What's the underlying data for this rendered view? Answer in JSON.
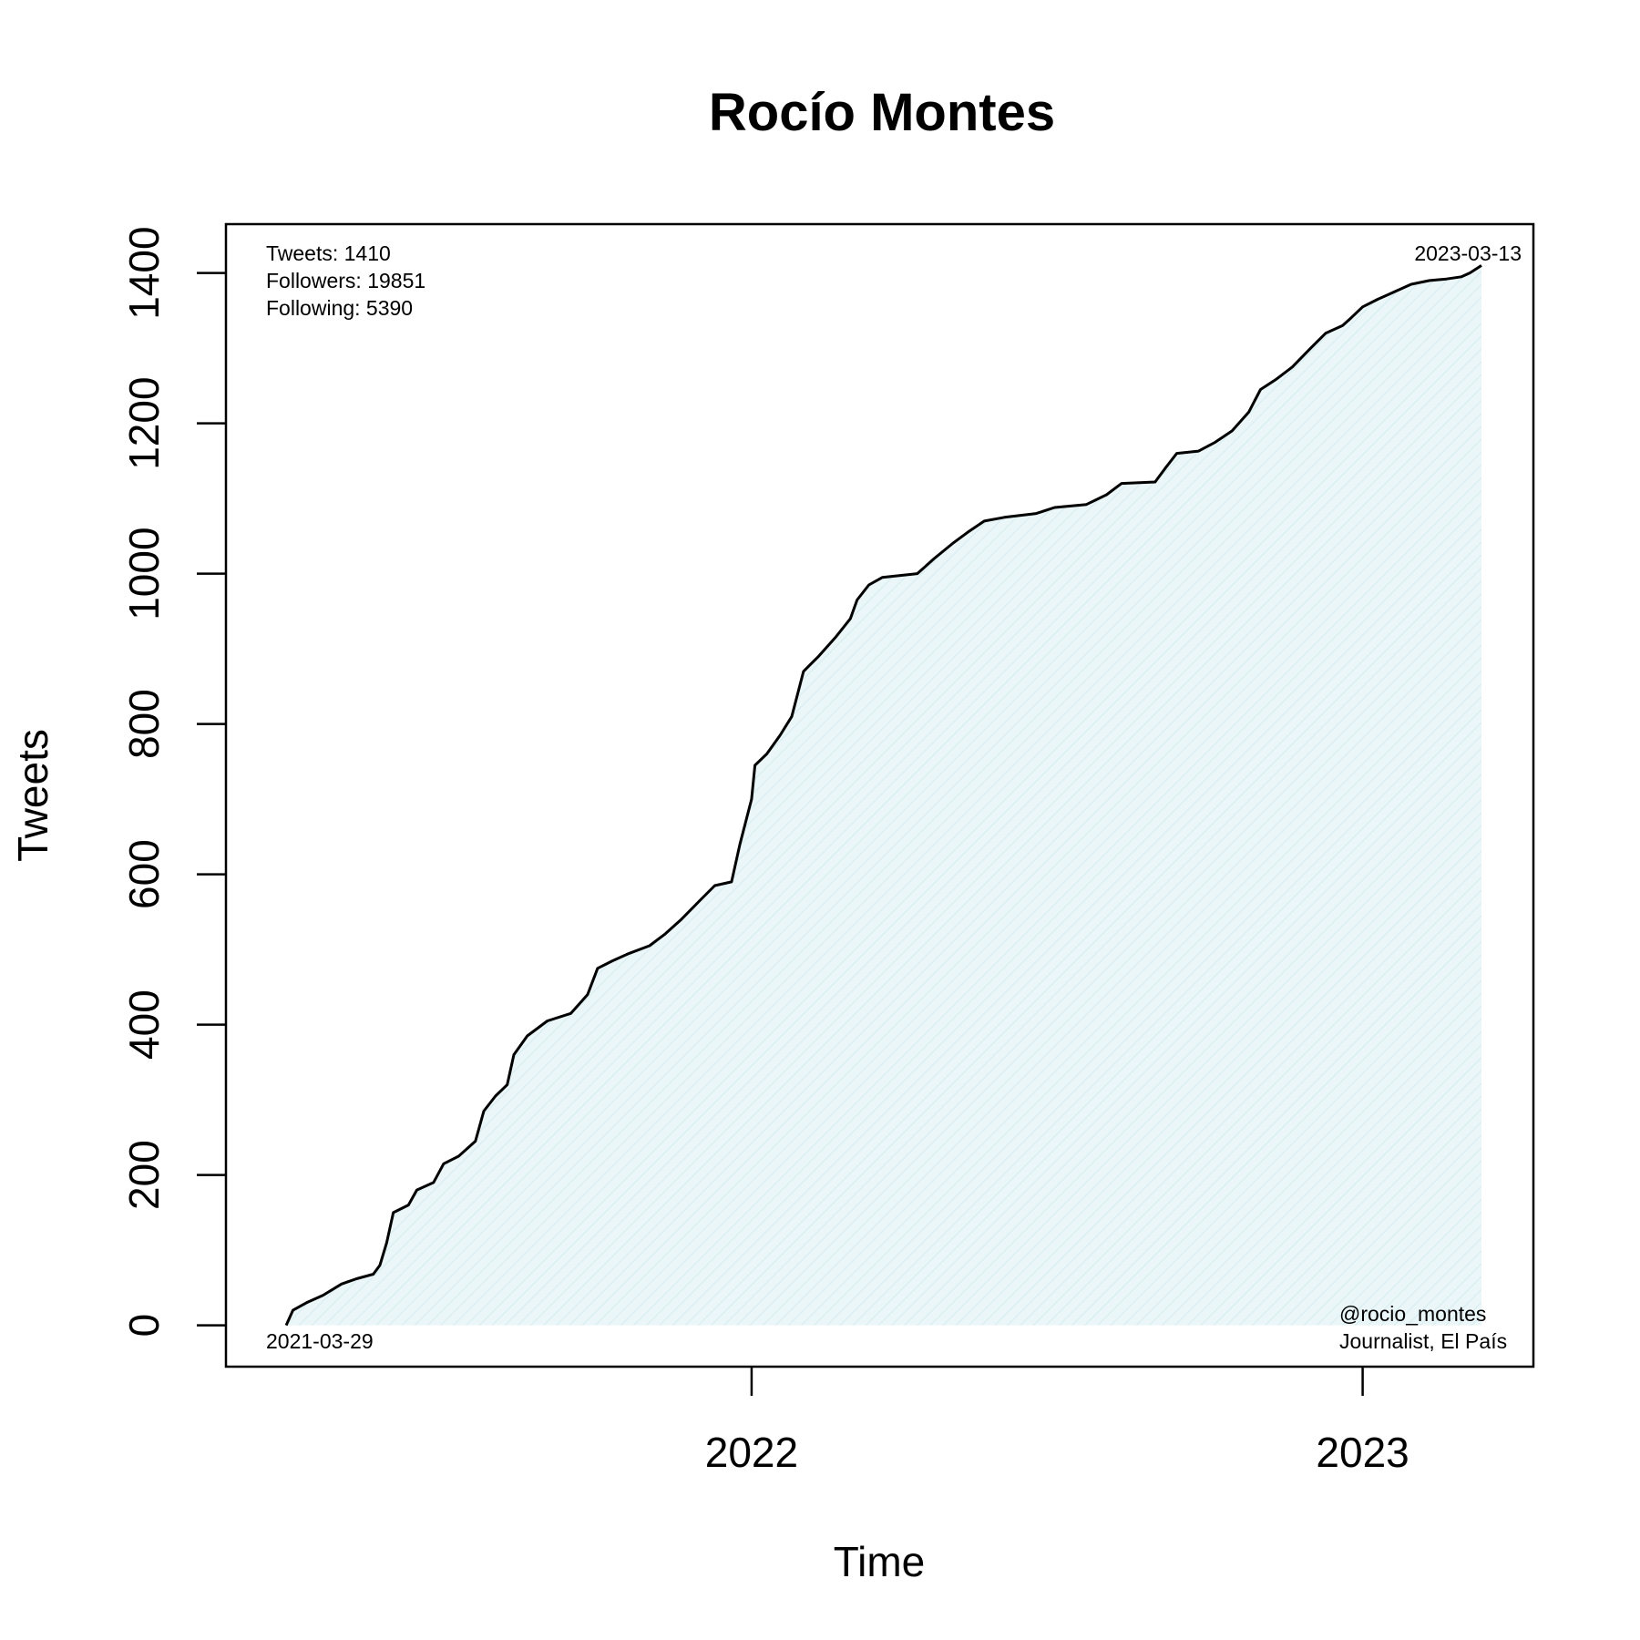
{
  "chart_data": {
    "type": "area",
    "title": "Rocío Montes",
    "xlabel": "Time",
    "ylabel": "Tweets",
    "x_ticks": [
      {
        "date": "2022-01-01",
        "label": "2022"
      },
      {
        "date": "2023-01-01",
        "label": "2023"
      }
    ],
    "y_ticks": [
      0,
      200,
      400,
      600,
      800,
      1000,
      1200,
      1400
    ],
    "xlim": [
      "2021-02-21",
      "2023-04-13"
    ],
    "ylim": [
      -55,
      1465
    ],
    "grid": false,
    "colors": {
      "line": "#000000",
      "fill": "#eaf6f8",
      "hatch": "#d6ecf1"
    },
    "annotations": {
      "tweets": "Tweets: 1410",
      "followers": "Followers: 19851",
      "following": "Following: 5390",
      "start_date": "2021-03-29",
      "end_date": "2023-03-13",
      "handle": "@rocio_montes",
      "bio": "Journalist, El País"
    },
    "series": [
      {
        "points": [
          [
            "2021-03-29",
            0
          ],
          [
            "2021-04-02",
            20
          ],
          [
            "2021-04-10",
            30
          ],
          [
            "2021-04-20",
            40
          ],
          [
            "2021-05-01",
            55
          ],
          [
            "2021-05-10",
            62
          ],
          [
            "2021-05-20",
            68
          ],
          [
            "2021-05-24",
            80
          ],
          [
            "2021-05-28",
            110
          ],
          [
            "2021-06-01",
            150
          ],
          [
            "2021-06-10",
            160
          ],
          [
            "2021-06-15",
            180
          ],
          [
            "2021-06-25",
            190
          ],
          [
            "2021-07-01",
            215
          ],
          [
            "2021-07-10",
            225
          ],
          [
            "2021-07-20",
            245
          ],
          [
            "2021-07-25",
            285
          ],
          [
            "2021-08-01",
            305
          ],
          [
            "2021-08-08",
            320
          ],
          [
            "2021-08-12",
            360
          ],
          [
            "2021-08-20",
            385
          ],
          [
            "2021-09-01",
            405
          ],
          [
            "2021-09-15",
            415
          ],
          [
            "2021-09-25",
            440
          ],
          [
            "2021-10-01",
            475
          ],
          [
            "2021-10-10",
            485
          ],
          [
            "2021-10-20",
            495
          ],
          [
            "2021-11-01",
            505
          ],
          [
            "2021-11-10",
            520
          ],
          [
            "2021-11-20",
            540
          ],
          [
            "2021-12-01",
            565
          ],
          [
            "2021-12-10",
            585
          ],
          [
            "2021-12-20",
            590
          ],
          [
            "2021-12-25",
            640
          ],
          [
            "2022-01-01",
            700
          ],
          [
            "2022-01-03",
            745
          ],
          [
            "2022-01-10",
            760
          ],
          [
            "2022-01-18",
            785
          ],
          [
            "2022-01-25",
            810
          ],
          [
            "2022-02-01",
            870
          ],
          [
            "2022-02-10",
            890
          ],
          [
            "2022-02-20",
            915
          ],
          [
            "2022-03-01",
            940
          ],
          [
            "2022-03-05",
            965
          ],
          [
            "2022-03-12",
            985
          ],
          [
            "2022-03-20",
            995
          ],
          [
            "2022-04-10",
            1000
          ],
          [
            "2022-04-20",
            1020
          ],
          [
            "2022-05-01",
            1040
          ],
          [
            "2022-05-10",
            1055
          ],
          [
            "2022-05-20",
            1070
          ],
          [
            "2022-06-01",
            1075
          ],
          [
            "2022-06-20",
            1080
          ],
          [
            "2022-07-01",
            1088
          ],
          [
            "2022-07-20",
            1092
          ],
          [
            "2022-08-01",
            1105
          ],
          [
            "2022-08-10",
            1120
          ],
          [
            "2022-08-30",
            1122
          ],
          [
            "2022-09-05",
            1140
          ],
          [
            "2022-09-12",
            1160
          ],
          [
            "2022-09-25",
            1163
          ],
          [
            "2022-10-05",
            1175
          ],
          [
            "2022-10-15",
            1190
          ],
          [
            "2022-10-25",
            1215
          ],
          [
            "2022-11-01",
            1245
          ],
          [
            "2022-11-10",
            1258
          ],
          [
            "2022-11-20",
            1275
          ],
          [
            "2022-12-01",
            1300
          ],
          [
            "2022-12-10",
            1320
          ],
          [
            "2022-12-20",
            1330
          ],
          [
            "2022-12-25",
            1340
          ],
          [
            "2023-01-01",
            1355
          ],
          [
            "2023-01-10",
            1365
          ],
          [
            "2023-01-20",
            1375
          ],
          [
            "2023-01-30",
            1385
          ],
          [
            "2023-02-10",
            1390
          ],
          [
            "2023-02-20",
            1392
          ],
          [
            "2023-03-01",
            1395
          ],
          [
            "2023-03-06",
            1400
          ],
          [
            "2023-03-13",
            1410
          ]
        ]
      }
    ]
  }
}
